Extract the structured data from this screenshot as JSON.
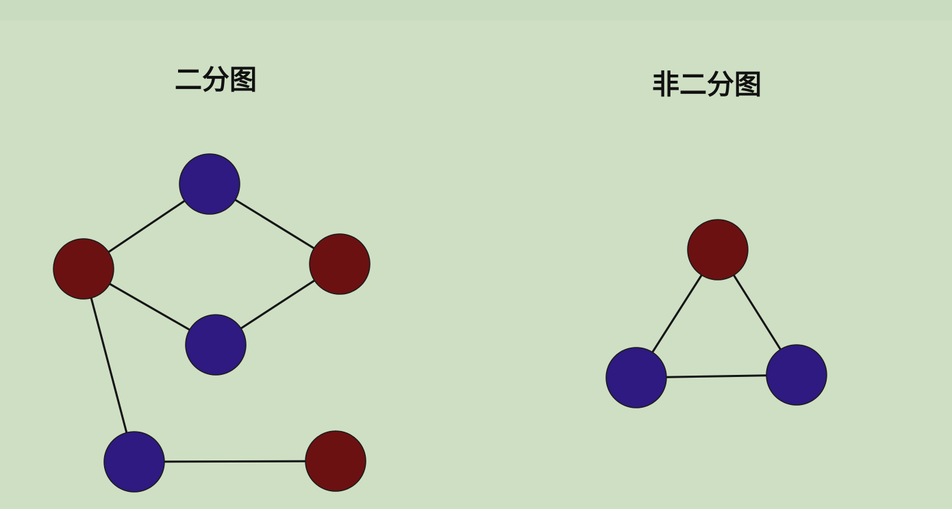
{
  "colors": {
    "background": "#cfdfc4",
    "red_node": "#6b1111",
    "blue_node": "#2e1a80",
    "edge": "#141414"
  },
  "panels": [
    {
      "title": "二分图",
      "nodes": [
        {
          "id": "top",
          "color": "blue"
        },
        {
          "id": "left",
          "color": "red"
        },
        {
          "id": "right",
          "color": "red"
        },
        {
          "id": "middle",
          "color": "blue"
        },
        {
          "id": "bottom-left",
          "color": "blue"
        },
        {
          "id": "bottom-right",
          "color": "red"
        }
      ],
      "edges": [
        [
          "left",
          "top"
        ],
        [
          "top",
          "right"
        ],
        [
          "left",
          "middle"
        ],
        [
          "middle",
          "right"
        ],
        [
          "left",
          "bottom-left"
        ],
        [
          "bottom-left",
          "bottom-right"
        ]
      ]
    },
    {
      "title": "非二分图",
      "nodes": [
        {
          "id": "top",
          "color": "red"
        },
        {
          "id": "bottom-left",
          "color": "blue"
        },
        {
          "id": "bottom-right",
          "color": "blue"
        }
      ],
      "edges": [
        [
          "top",
          "bottom-left"
        ],
        [
          "top",
          "bottom-right"
        ],
        [
          "bottom-left",
          "bottom-right"
        ]
      ]
    }
  ]
}
